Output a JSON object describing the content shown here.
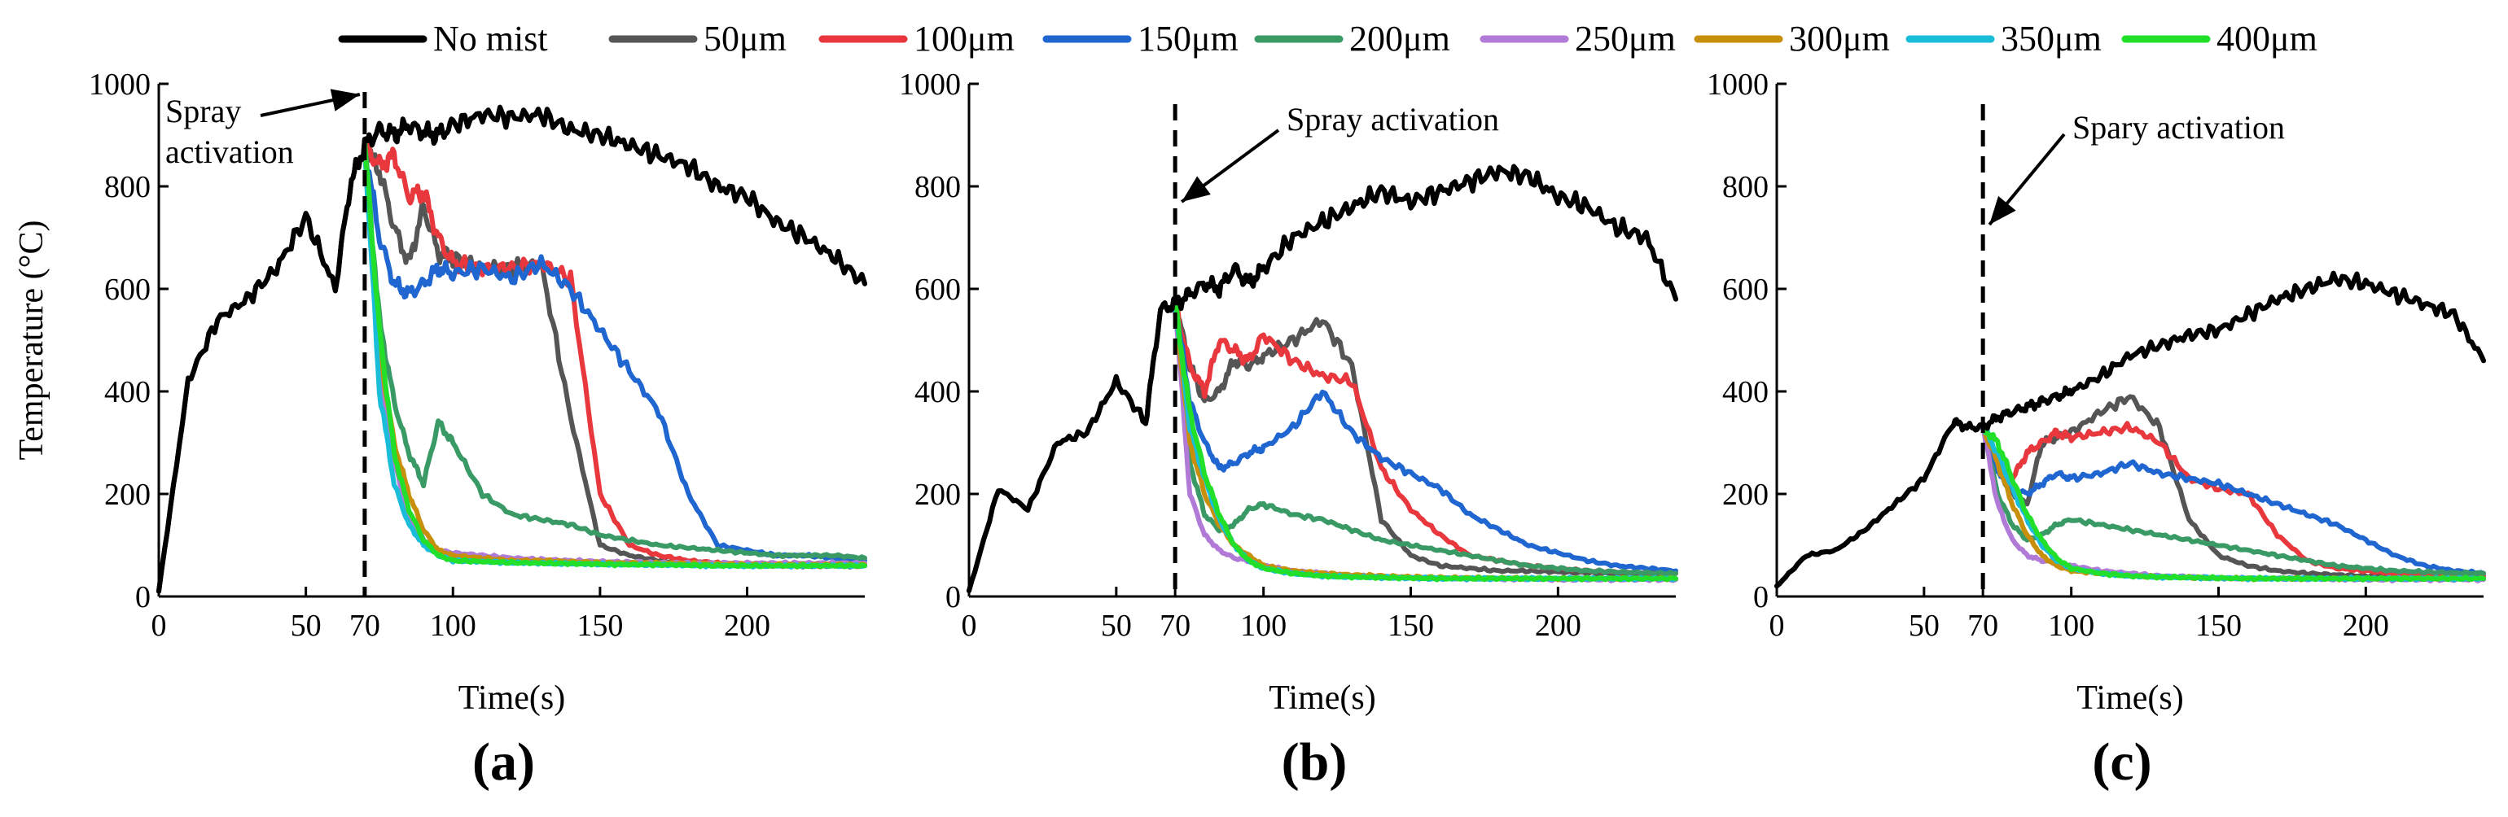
{
  "legend": [
    {
      "name": "No mist",
      "color": "#000000"
    },
    {
      "name": "50μm",
      "color": "#555555"
    },
    {
      "name": "100μm",
      "color": "#e8383d"
    },
    {
      "name": "150μm",
      "color": "#1f66d1"
    },
    {
      "name": "200μm",
      "color": "#3a9a66"
    },
    {
      "name": "250μm",
      "color": "#b07ad6"
    },
    {
      "name": "300μm",
      "color": "#c8900a"
    },
    {
      "name": "350μm",
      "color": "#19bcd9"
    },
    {
      "name": "400μm",
      "color": "#22e02a"
    }
  ],
  "axes": {
    "xlabel": "Time(s)",
    "ylabel": "Temperature (°C)",
    "xlim": [
      0,
      240
    ],
    "ylim": [
      0,
      1000
    ],
    "xticks": [
      0,
      50,
      70,
      100,
      150,
      200
    ],
    "yticks": [
      0,
      200,
      400,
      600,
      800,
      1000
    ],
    "spray_time": 70
  },
  "chart_data": [
    {
      "type": "line",
      "panel_label": "(a)",
      "annotation": {
        "lines": [
          "Spray",
          "activation"
        ]
      },
      "x": [
        0,
        10,
        20,
        30,
        40,
        50,
        60,
        65,
        70,
        75,
        80,
        85,
        90,
        95,
        100,
        110,
        120,
        130,
        140,
        150,
        160,
        170,
        180,
        190,
        200,
        210,
        220,
        230,
        240
      ],
      "series": [
        {
          "name": "No mist",
          "values": [
            10,
            420,
            540,
            580,
            640,
            740,
            600,
            800,
            880,
            910,
            900,
            920,
            905,
            900,
            920,
            940,
            935,
            940,
            910,
            900,
            880,
            860,
            840,
            800,
            780,
            730,
            700,
            660,
            610
          ]
        },
        {
          "name": "50μm",
          "values": [
            null,
            null,
            null,
            null,
            null,
            null,
            null,
            null,
            880,
            830,
            720,
            650,
            760,
            670,
            660,
            640,
            640,
            650,
            350,
            100,
            80,
            70,
            65,
            65,
            62,
            60,
            60,
            60,
            60
          ]
        },
        {
          "name": "100μm",
          "values": [
            null,
            null,
            null,
            null,
            null,
            null,
            null,
            null,
            880,
            840,
            860,
            780,
            790,
            700,
            650,
            640,
            640,
            650,
            620,
            200,
            100,
            80,
            70,
            65,
            62,
            60,
            60,
            60,
            60
          ]
        },
        {
          "name": "150μm",
          "values": [
            null,
            null,
            null,
            null,
            null,
            null,
            null,
            null,
            880,
            700,
            610,
            590,
            610,
            640,
            630,
            640,
            620,
            650,
            600,
            520,
            440,
            360,
            200,
            100,
            90,
            80,
            80,
            75,
            70
          ]
        },
        {
          "name": "200μm",
          "values": [
            null,
            null,
            null,
            null,
            null,
            null,
            null,
            null,
            880,
            540,
            380,
            280,
            220,
            340,
            300,
            200,
            160,
            150,
            140,
            120,
            110,
            100,
            95,
            90,
            85,
            80,
            80,
            80,
            75
          ]
        },
        {
          "name": "250μm",
          "values": [
            null,
            null,
            null,
            null,
            null,
            null,
            null,
            null,
            880,
            440,
            260,
            160,
            110,
            90,
            85,
            80,
            75,
            72,
            70,
            68,
            67,
            66,
            65,
            65,
            65,
            65,
            65,
            65,
            65
          ]
        },
        {
          "name": "300μm",
          "values": [
            null,
            null,
            null,
            null,
            null,
            null,
            null,
            null,
            880,
            480,
            300,
            200,
            130,
            90,
            80,
            75,
            70,
            70,
            68,
            66,
            65,
            65,
            64,
            63,
            62,
            62,
            62,
            62,
            62
          ]
        },
        {
          "name": "350μm",
          "values": [
            null,
            null,
            null,
            null,
            null,
            null,
            null,
            null,
            880,
            400,
            220,
            140,
            100,
            80,
            70,
            68,
            66,
            65,
            64,
            63,
            62,
            62,
            61,
            60,
            60,
            60,
            60,
            60,
            60
          ]
        },
        {
          "name": "400μm",
          "values": [
            null,
            null,
            null,
            null,
            null,
            null,
            null,
            null,
            880,
            520,
            280,
            170,
            110,
            80,
            70,
            68,
            66,
            65,
            64,
            63,
            62,
            62,
            61,
            60,
            60,
            60,
            60,
            60,
            60
          ]
        }
      ]
    },
    {
      "type": "line",
      "panel_label": "(b)",
      "annotation": {
        "lines": [
          "Spray activation"
        ]
      },
      "x": [
        0,
        10,
        20,
        30,
        40,
        50,
        60,
        65,
        70,
        75,
        80,
        85,
        90,
        95,
        100,
        110,
        120,
        130,
        140,
        150,
        160,
        170,
        180,
        190,
        200,
        210,
        220,
        230,
        240
      ],
      "series": [
        {
          "name": "No mist",
          "values": [
            10,
            210,
            170,
            300,
            320,
            420,
            340,
            560,
            570,
            590,
            610,
            600,
            640,
            610,
            640,
            700,
            730,
            760,
            790,
            770,
            790,
            810,
            830,
            820,
            780,
            760,
            720,
            700,
            580
          ]
        },
        {
          "name": "50μm",
          "values": [
            null,
            null,
            null,
            null,
            null,
            null,
            null,
            null,
            570,
            450,
            380,
            400,
            460,
            450,
            470,
            500,
            540,
            450,
            150,
            80,
            60,
            55,
            50,
            50,
            48,
            46,
            45,
            45,
            45
          ]
        },
        {
          "name": "100μm",
          "values": [
            null,
            null,
            null,
            null,
            null,
            null,
            null,
            null,
            570,
            450,
            400,
            500,
            480,
            460,
            510,
            460,
            430,
            420,
            250,
            170,
            120,
            80,
            70,
            60,
            55,
            50,
            48,
            46,
            45
          ]
        },
        {
          "name": "150μm",
          "values": [
            null,
            null,
            null,
            null,
            null,
            null,
            null,
            null,
            570,
            380,
            300,
            250,
            260,
            280,
            290,
            330,
            400,
            320,
            270,
            240,
            210,
            160,
            130,
            100,
            85,
            70,
            60,
            55,
            50
          ]
        },
        {
          "name": "200μm",
          "values": [
            null,
            null,
            null,
            null,
            null,
            null,
            null,
            null,
            570,
            260,
            160,
            130,
            140,
            170,
            180,
            160,
            150,
            130,
            110,
            100,
            90,
            80,
            70,
            60,
            55,
            50,
            48,
            46,
            45
          ]
        },
        {
          "name": "250μm",
          "values": [
            null,
            null,
            null,
            null,
            null,
            null,
            null,
            null,
            570,
            200,
            120,
            90,
            75,
            70,
            60,
            50,
            45,
            40,
            38,
            36,
            35,
            35,
            34,
            34,
            33,
            33,
            33,
            33,
            33
          ]
        },
        {
          "name": "300μm",
          "values": [
            null,
            null,
            null,
            null,
            null,
            null,
            null,
            null,
            570,
            300,
            200,
            140,
            100,
            80,
            60,
            50,
            45,
            42,
            40,
            38,
            37,
            36,
            36,
            35,
            35,
            35,
            35,
            35,
            35
          ]
        },
        {
          "name": "350μm",
          "values": [
            null,
            null,
            null,
            null,
            null,
            null,
            null,
            null,
            570,
            330,
            230,
            150,
            100,
            70,
            55,
            45,
            40,
            38,
            37,
            36,
            35,
            35,
            35,
            35,
            35,
            35,
            35,
            35,
            35
          ]
        },
        {
          "name": "400μm",
          "values": [
            null,
            null,
            null,
            null,
            null,
            null,
            null,
            null,
            570,
            360,
            240,
            160,
            100,
            70,
            55,
            45,
            40,
            38,
            37,
            36,
            35,
            35,
            35,
            35,
            35,
            35,
            35,
            35,
            35
          ]
        }
      ]
    },
    {
      "type": "line",
      "panel_label": "(c)",
      "annotation": {
        "lines": [
          "Spary activation"
        ]
      },
      "x": [
        0,
        10,
        20,
        30,
        40,
        50,
        60,
        65,
        70,
        75,
        80,
        85,
        90,
        95,
        100,
        110,
        120,
        130,
        140,
        150,
        160,
        170,
        180,
        190,
        200,
        210,
        220,
        230,
        240
      ],
      "series": [
        {
          "name": "No mist",
          "values": [
            20,
            80,
            90,
            130,
            180,
            230,
            340,
            330,
            330,
            350,
            360,
            370,
            380,
            390,
            400,
            430,
            470,
            490,
            510,
            520,
            550,
            580,
            600,
            620,
            610,
            590,
            570,
            550,
            460
          ]
        },
        {
          "name": "50μm",
          "values": [
            null,
            null,
            null,
            null,
            null,
            null,
            null,
            null,
            330,
            250,
            200,
            180,
            300,
            310,
            320,
            360,
            390,
            330,
            150,
            80,
            60,
            50,
            45,
            42,
            40,
            40,
            40,
            40,
            40
          ]
        },
        {
          "name": "100μm",
          "values": [
            null,
            null,
            null,
            null,
            null,
            null,
            null,
            null,
            330,
            260,
            230,
            280,
            300,
            320,
            310,
            320,
            330,
            300,
            230,
            210,
            200,
            120,
            70,
            55,
            50,
            45,
            42,
            40,
            40
          ]
        },
        {
          "name": "150μm",
          "values": [
            null,
            null,
            null,
            null,
            null,
            null,
            null,
            null,
            330,
            240,
            210,
            200,
            220,
            240,
            230,
            240,
            260,
            240,
            230,
            220,
            200,
            180,
            160,
            140,
            110,
            80,
            60,
            50,
            45
          ]
        },
        {
          "name": "200μm",
          "values": [
            null,
            null,
            null,
            null,
            null,
            null,
            null,
            null,
            330,
            200,
            140,
            110,
            120,
            140,
            150,
            140,
            130,
            120,
            110,
            100,
            90,
            80,
            70,
            60,
            55,
            50,
            48,
            46,
            45
          ]
        },
        {
          "name": "250μm",
          "values": [
            null,
            null,
            null,
            null,
            null,
            null,
            null,
            null,
            330,
            180,
            110,
            80,
            70,
            65,
            60,
            50,
            45,
            40,
            38,
            36,
            35,
            35,
            34,
            34,
            33,
            33,
            33,
            33,
            33
          ]
        },
        {
          "name": "300μm",
          "values": [
            null,
            null,
            null,
            null,
            null,
            null,
            null,
            null,
            330,
            260,
            180,
            120,
            80,
            60,
            50,
            45,
            40,
            38,
            37,
            36,
            35,
            35,
            35,
            35,
            35,
            35,
            35,
            35,
            35
          ]
        },
        {
          "name": "350μm",
          "values": [
            null,
            null,
            null,
            null,
            null,
            null,
            null,
            null,
            330,
            280,
            210,
            150,
            100,
            70,
            55,
            45,
            40,
            38,
            37,
            36,
            35,
            35,
            35,
            35,
            35,
            35,
            35,
            35,
            35
          ]
        },
        {
          "name": "400μm",
          "values": [
            null,
            null,
            null,
            null,
            null,
            null,
            null,
            null,
            330,
            300,
            230,
            160,
            110,
            75,
            55,
            45,
            40,
            38,
            37,
            36,
            35,
            35,
            35,
            35,
            35,
            35,
            35,
            35,
            35
          ]
        }
      ]
    }
  ]
}
